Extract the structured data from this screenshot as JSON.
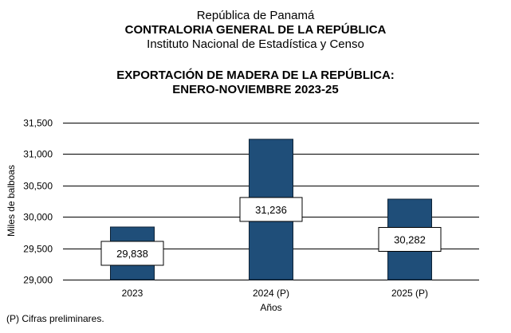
{
  "header": {
    "line1": "República de Panamá",
    "line2": "CONTRALORIA GENERAL DE LA REPÚBLICA",
    "line3": "Instituto  Nacional de Estadística y Censo"
  },
  "colors": {
    "bar": "#1f4e79",
    "bar_border": "#0d2236",
    "gridline": "#000000",
    "label_box_bg": "#ffffff"
  },
  "chart_data": {
    "type": "bar",
    "title": "EXPORTACIÓN DE MADERA DE LA REPÚBLICA:",
    "subtitle": "ENERO-NOVIEMBRE 2023-25",
    "categories": [
      "2023",
      "2024 (P)",
      "2025 (P)"
    ],
    "values": [
      29838,
      31236,
      30282
    ],
    "data_labels": [
      "29,838",
      "31,236",
      "30,282"
    ],
    "xlabel": "Años",
    "ylabel": "Miles de balboas",
    "ylim": [
      29000,
      31500
    ],
    "yticks": [
      29000,
      29500,
      30000,
      30500,
      31000,
      31500
    ],
    "ytick_labels": [
      "29,000",
      "29,500",
      "30,000",
      "30,500",
      "31,000",
      "31,500"
    ],
    "grid": true,
    "legend": "none"
  },
  "footnote": "(P) Cifras  preliminares."
}
